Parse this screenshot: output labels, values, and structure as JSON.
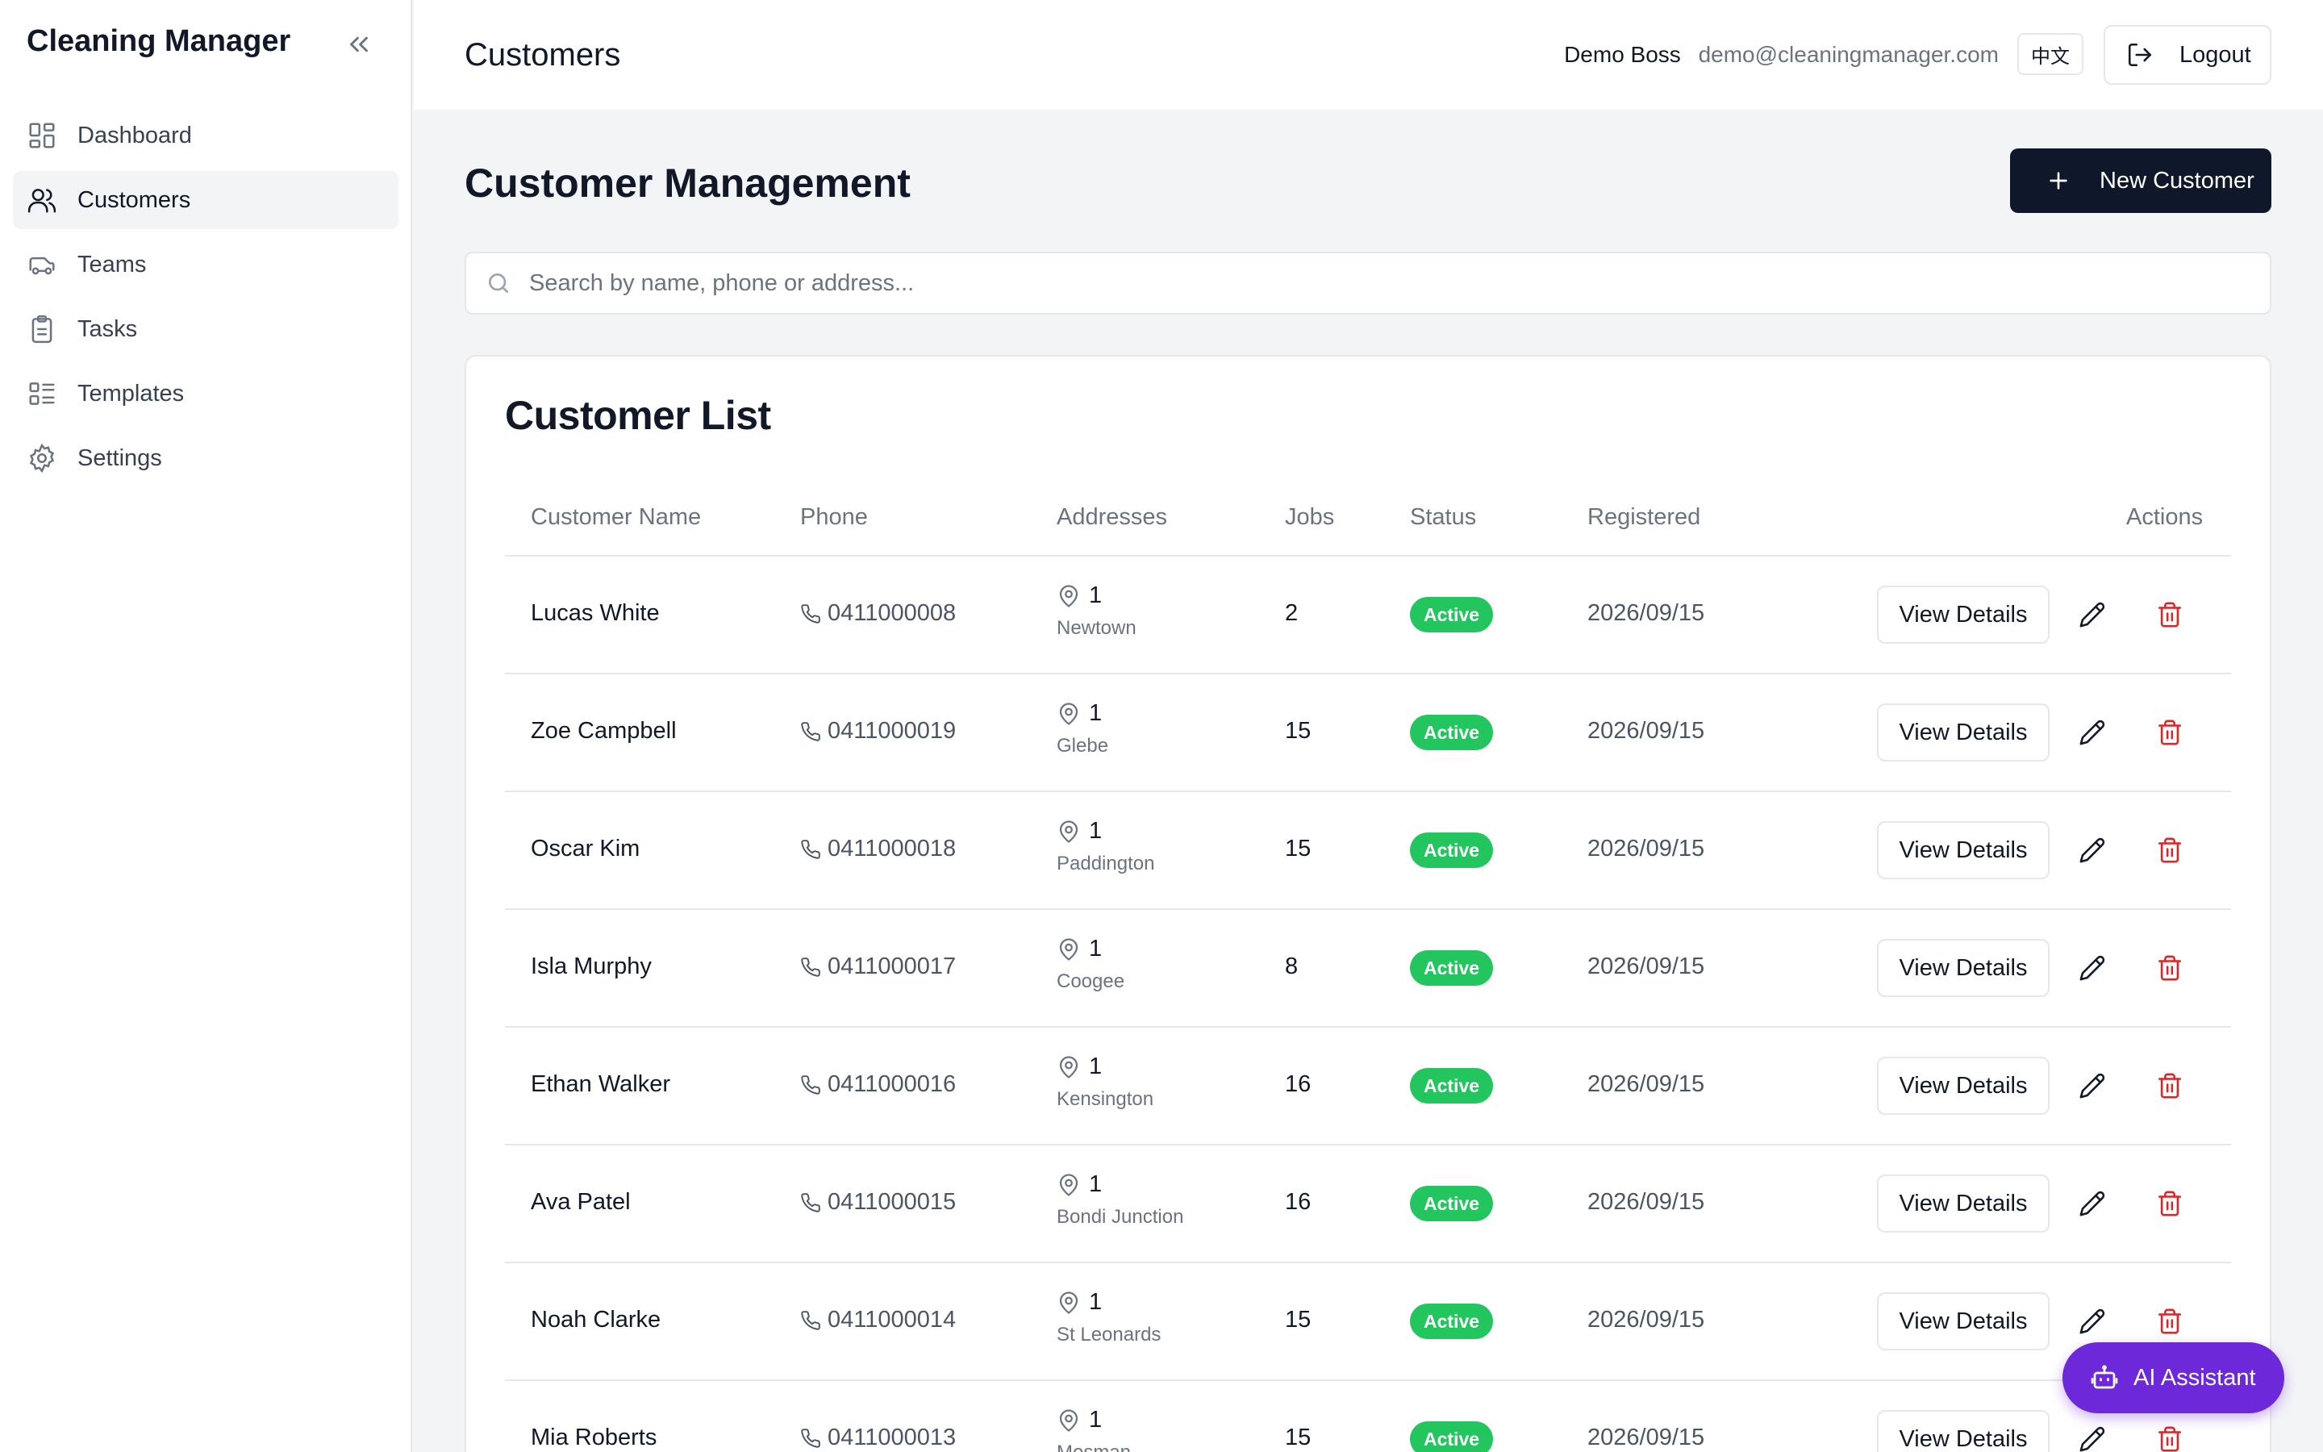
{
  "app": {
    "brand": "Cleaning Manager"
  },
  "sidebar": {
    "items": [
      {
        "label": "Dashboard",
        "icon": "dashboard-icon",
        "active": false
      },
      {
        "label": "Customers",
        "icon": "users-icon",
        "active": true
      },
      {
        "label": "Teams",
        "icon": "truck-icon",
        "active": false
      },
      {
        "label": "Tasks",
        "icon": "clipboard-icon",
        "active": false
      },
      {
        "label": "Templates",
        "icon": "list-icon",
        "active": false
      },
      {
        "label": "Settings",
        "icon": "gear-icon",
        "active": false
      }
    ]
  },
  "header": {
    "title": "Customers",
    "user_name": "Demo Boss",
    "user_email": "demo@cleaningmanager.com",
    "lang_label": "中文",
    "logout_label": "Logout"
  },
  "main": {
    "heading": "Customer Management",
    "new_button": "New Customer",
    "search_placeholder": "Search by name, phone or address..."
  },
  "list": {
    "title": "Customer List",
    "columns": {
      "name": "Customer Name",
      "phone": "Phone",
      "addresses": "Addresses",
      "jobs": "Jobs",
      "status": "Status",
      "registered": "Registered",
      "actions": "Actions"
    },
    "view_label": "View Details",
    "rows": [
      {
        "name": "Lucas White",
        "phone": "0411000008",
        "address_count": "1",
        "suburb": "Newtown",
        "jobs": "2",
        "status": "Active",
        "registered": "2026/09/15"
      },
      {
        "name": "Zoe Campbell",
        "phone": "0411000019",
        "address_count": "1",
        "suburb": "Glebe",
        "jobs": "15",
        "status": "Active",
        "registered": "2026/09/15"
      },
      {
        "name": "Oscar Kim",
        "phone": "0411000018",
        "address_count": "1",
        "suburb": "Paddington",
        "jobs": "15",
        "status": "Active",
        "registered": "2026/09/15"
      },
      {
        "name": "Isla Murphy",
        "phone": "0411000017",
        "address_count": "1",
        "suburb": "Coogee",
        "jobs": "8",
        "status": "Active",
        "registered": "2026/09/15"
      },
      {
        "name": "Ethan Walker",
        "phone": "0411000016",
        "address_count": "1",
        "suburb": "Kensington",
        "jobs": "16",
        "status": "Active",
        "registered": "2026/09/15"
      },
      {
        "name": "Ava Patel",
        "phone": "0411000015",
        "address_count": "1",
        "suburb": "Bondi Junction",
        "jobs": "16",
        "status": "Active",
        "registered": "2026/09/15"
      },
      {
        "name": "Noah Clarke",
        "phone": "0411000014",
        "address_count": "1",
        "suburb": "St Leonards",
        "jobs": "15",
        "status": "Active",
        "registered": "2026/09/15"
      },
      {
        "name": "Mia Roberts",
        "phone": "0411000013",
        "address_count": "1",
        "suburb": "Mosman",
        "jobs": "15",
        "status": "Active",
        "registered": "2026/09/15"
      }
    ]
  },
  "ai": {
    "label": "AI Assistant"
  },
  "colors": {
    "primary_dark": "#0f172a",
    "status_active": "#22c55e",
    "delete_red": "#dc2626",
    "ai_purple": "#6d28d9"
  }
}
